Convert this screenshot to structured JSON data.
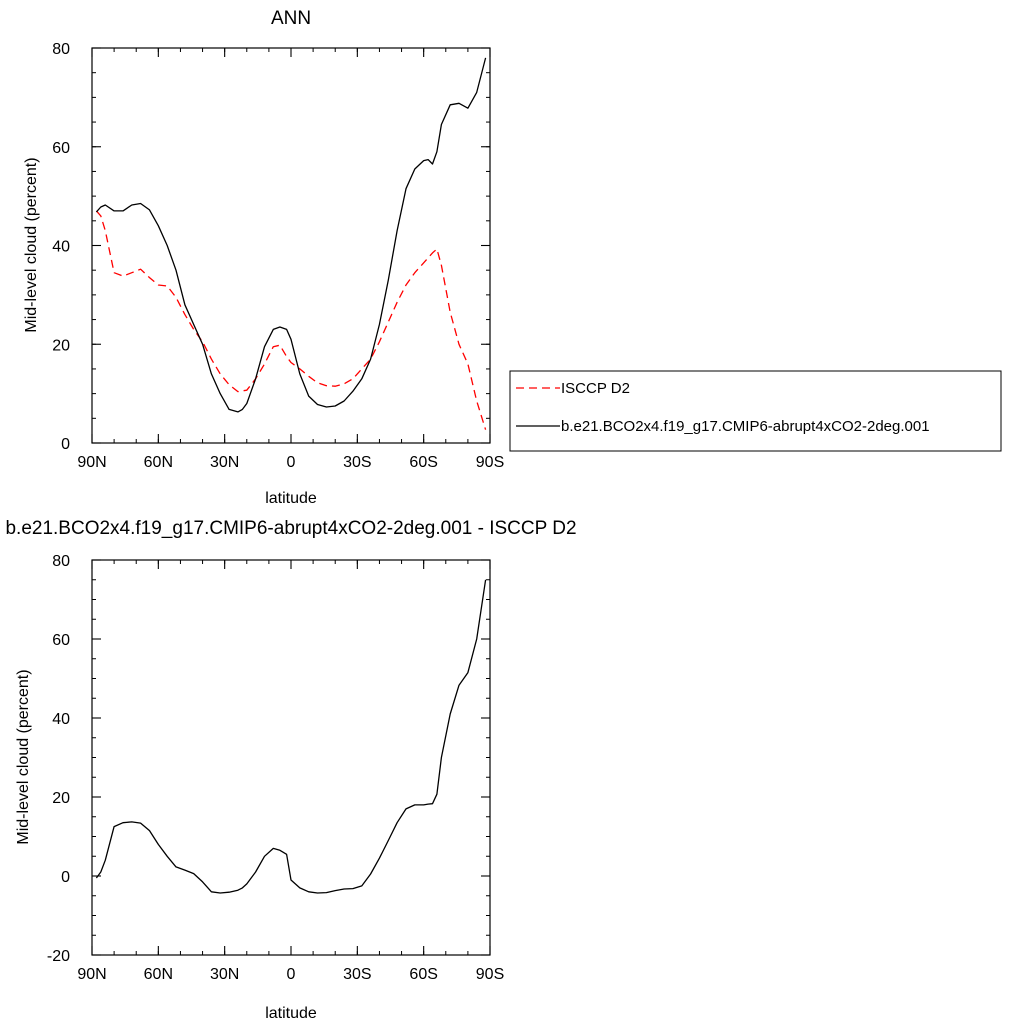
{
  "colors": {
    "model": "#000000",
    "obs": "#ff0000",
    "axis": "#000000",
    "background": "#ffffff"
  },
  "chart_data": [
    {
      "type": "line",
      "title": "ANN",
      "xlabel": "latitude",
      "ylabel": "Mid-level cloud (percent)",
      "xlim": [
        90,
        -90
      ],
      "ylim": [
        0,
        80
      ],
      "xticks": [
        {
          "value": 90,
          "label": "90N"
        },
        {
          "value": 60,
          "label": "60N"
        },
        {
          "value": 30,
          "label": "30N"
        },
        {
          "value": 0,
          "label": "0"
        },
        {
          "value": -30,
          "label": "30S"
        },
        {
          "value": -60,
          "label": "60S"
        },
        {
          "value": -90,
          "label": "90S"
        }
      ],
      "yticks": [
        0,
        20,
        40,
        60,
        80
      ],
      "grid": false,
      "legend": "right",
      "series": [
        {
          "name": "ISCCP D2",
          "style": "dashed",
          "color": "#ff0000",
          "x": [
            88,
            86,
            84,
            80,
            76,
            72,
            68,
            64,
            60,
            56,
            52,
            48,
            44,
            40,
            36,
            32,
            28,
            24,
            20,
            16,
            12,
            8,
            5,
            2,
            0,
            -4,
            -8,
            -12,
            -16,
            -20,
            -24,
            -28,
            -32,
            -36,
            -40,
            -44,
            -48,
            -52,
            -56,
            -60,
            -64,
            -66,
            -68,
            -72,
            -76,
            -80,
            -84,
            -88
          ],
          "y": [
            47,
            46,
            43,
            34.5,
            33.8,
            34.5,
            35.2,
            33.5,
            32,
            31.8,
            29.5,
            26,
            23,
            20.5,
            17,
            14,
            11.8,
            10.4,
            10.7,
            13,
            16,
            19.5,
            19.8,
            17.5,
            16.3,
            15,
            13.5,
            12.2,
            11.6,
            11.5,
            12,
            13,
            15,
            17,
            20.5,
            24.5,
            28.5,
            32,
            34.5,
            36.5,
            38.5,
            39.3,
            36,
            26.5,
            20,
            16,
            8.5,
            2.7
          ]
        },
        {
          "name": "b.e21.BCO2x4.f19_g17.CMIP6-abrupt4xCO2-2deg.001",
          "style": "solid",
          "color": "#000000",
          "x": [
            88,
            86,
            84,
            80,
            76,
            72,
            68,
            64,
            60,
            56,
            52,
            48,
            44,
            40,
            36,
            32,
            28,
            24,
            22,
            20,
            16,
            12,
            8,
            5,
            2,
            0,
            -4,
            -8,
            -12,
            -16,
            -20,
            -24,
            -28,
            -32,
            -36,
            -40,
            -44,
            -48,
            -52,
            -56,
            -60,
            -62,
            -64,
            -66,
            -68,
            -72,
            -76,
            -80,
            -84,
            -88
          ],
          "y": [
            46.8,
            47.8,
            48.2,
            47,
            47,
            48.2,
            48.5,
            47.2,
            44,
            40,
            35,
            28,
            24,
            20,
            14,
            10,
            6.8,
            6.3,
            6.8,
            8,
            13,
            19.5,
            23,
            23.5,
            23,
            21,
            14,
            9.5,
            7.8,
            7.3,
            7.5,
            8.5,
            10.5,
            13,
            17,
            24,
            33,
            43,
            51.5,
            55.5,
            57.2,
            57.4,
            56.5,
            59,
            64.5,
            68.5,
            68.8,
            67.8,
            71,
            78
          ]
        }
      ]
    },
    {
      "type": "line",
      "title": "b.e21.BCO2x4.f19_g17.CMIP6-abrupt4xCO2-2deg.001 - ISCCP D2",
      "xlabel": "latitude",
      "ylabel": "Mid-level cloud (percent)",
      "xlim": [
        90,
        -90
      ],
      "ylim": [
        -20,
        80
      ],
      "xticks": [
        {
          "value": 90,
          "label": "90N"
        },
        {
          "value": 60,
          "label": "60N"
        },
        {
          "value": 30,
          "label": "30N"
        },
        {
          "value": 0,
          "label": "0"
        },
        {
          "value": -30,
          "label": "30S"
        },
        {
          "value": -60,
          "label": "60S"
        },
        {
          "value": -90,
          "label": "90S"
        }
      ],
      "yticks": [
        -20,
        0,
        20,
        40,
        60,
        80
      ],
      "grid": false,
      "legend": "none",
      "series": [
        {
          "style": "solid",
          "color": "#000000",
          "x": [
            88,
            86,
            84,
            80,
            76,
            72,
            68,
            64,
            60,
            56,
            52,
            48,
            44,
            40,
            36,
            32,
            28,
            24,
            22,
            20,
            16,
            12,
            8,
            5,
            2,
            0,
            -4,
            -8,
            -12,
            -16,
            -20,
            -24,
            -28,
            -32,
            -36,
            -40,
            -44,
            -48,
            -52,
            -56,
            -60,
            -62,
            -64,
            -66,
            -68,
            -72,
            -76,
            -80,
            -84,
            -88
          ],
          "y": [
            -0.5,
            1,
            4,
            12.5,
            13.5,
            13.7,
            13.4,
            11.5,
            8,
            5,
            2.3,
            1.5,
            0.6,
            -1.5,
            -4,
            -4.3,
            -4.1,
            -3.6,
            -3,
            -2,
            1,
            5,
            7,
            6.5,
            5.5,
            -1,
            -3,
            -4,
            -4.3,
            -4.2,
            -3.7,
            -3.3,
            -3.2,
            -2.5,
            0.5,
            4.5,
            9,
            13.5,
            17,
            18,
            18,
            18.2,
            18.3,
            20.7,
            30,
            41,
            48.3,
            51.5,
            60,
            75
          ]
        }
      ]
    }
  ]
}
